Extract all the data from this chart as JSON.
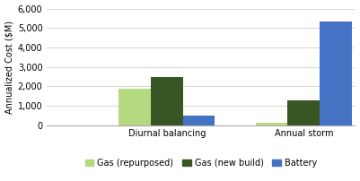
{
  "groups": [
    "Diurnal balancing",
    "Annual storm"
  ],
  "series": {
    "Gas (repurposed)": [
      1850,
      100
    ],
    "Gas (new build)": [
      2450,
      1250
    ],
    "Battery": [
      500,
      5350
    ]
  },
  "colors": {
    "Gas (repurposed)": "#b5d97f",
    "Gas (new build)": "#375623",
    "Battery": "#4472c4"
  },
  "ylabel": "Annualized Cost ($M)",
  "ylim": [
    0,
    6000
  ],
  "yticks": [
    0,
    1000,
    2000,
    3000,
    4000,
    5000,
    6000
  ],
  "ytick_labels": [
    "0",
    "1,000",
    "2,000",
    "3,000",
    "4,000",
    "5,000",
    "6,000"
  ],
  "legend_order": [
    "Gas (repurposed)",
    "Gas (new build)",
    "Battery"
  ],
  "bar_width": 0.28,
  "xlim": [
    -0.6,
    2.1
  ],
  "group_positions": [
    0.45,
    1.65
  ]
}
